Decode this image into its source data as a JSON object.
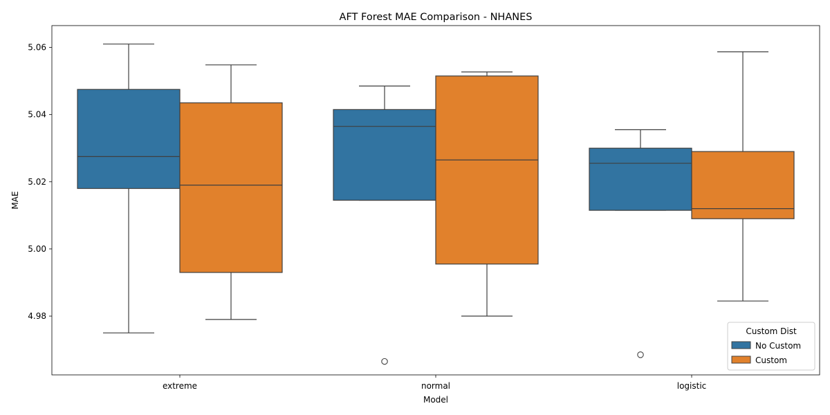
{
  "chart_data": {
    "type": "boxplot",
    "title": "AFT Forest MAE Comparison - NHANES",
    "xlabel": "Model",
    "ylabel": "MAE",
    "categories": [
      "extreme",
      "normal",
      "logistic"
    ],
    "ylim": [
      4.9625,
      5.0665
    ],
    "yticks": [
      4.98,
      5.0,
      5.02,
      5.04,
      5.06
    ],
    "ytick_labels": [
      "4.98",
      "5.00",
      "5.02",
      "5.04",
      "5.06"
    ],
    "grid": false,
    "legend": {
      "title": "Custom Dist",
      "placement": "lower-right"
    },
    "series": [
      {
        "name": "No Custom",
        "color": "#3274a1",
        "boxes": [
          {
            "whislo": 4.975,
            "q1": 5.018,
            "med": 5.0275,
            "q3": 5.0475,
            "whishi": 5.061,
            "fliers": []
          },
          {
            "whislo": 5.0145,
            "q1": 5.0145,
            "med": 5.0365,
            "q3": 5.0415,
            "whishi": 5.0485,
            "fliers": [
              4.9665
            ]
          },
          {
            "whislo": 5.0115,
            "q1": 5.0115,
            "med": 5.0255,
            "q3": 5.03,
            "whishi": 5.0355,
            "fliers": [
              4.9685
            ]
          }
        ]
      },
      {
        "name": "Custom",
        "color": "#e1812c",
        "boxes": [
          {
            "whislo": 4.979,
            "q1": 4.993,
            "med": 5.019,
            "q3": 5.0435,
            "whishi": 5.0548,
            "fliers": []
          },
          {
            "whislo": 4.98,
            "q1": 4.9955,
            "med": 5.0265,
            "q3": 5.0515,
            "whishi": 5.0527,
            "fliers": []
          },
          {
            "whislo": 4.9845,
            "q1": 5.009,
            "med": 5.012,
            "q3": 5.029,
            "whishi": 5.0587,
            "fliers": []
          }
        ]
      }
    ]
  }
}
